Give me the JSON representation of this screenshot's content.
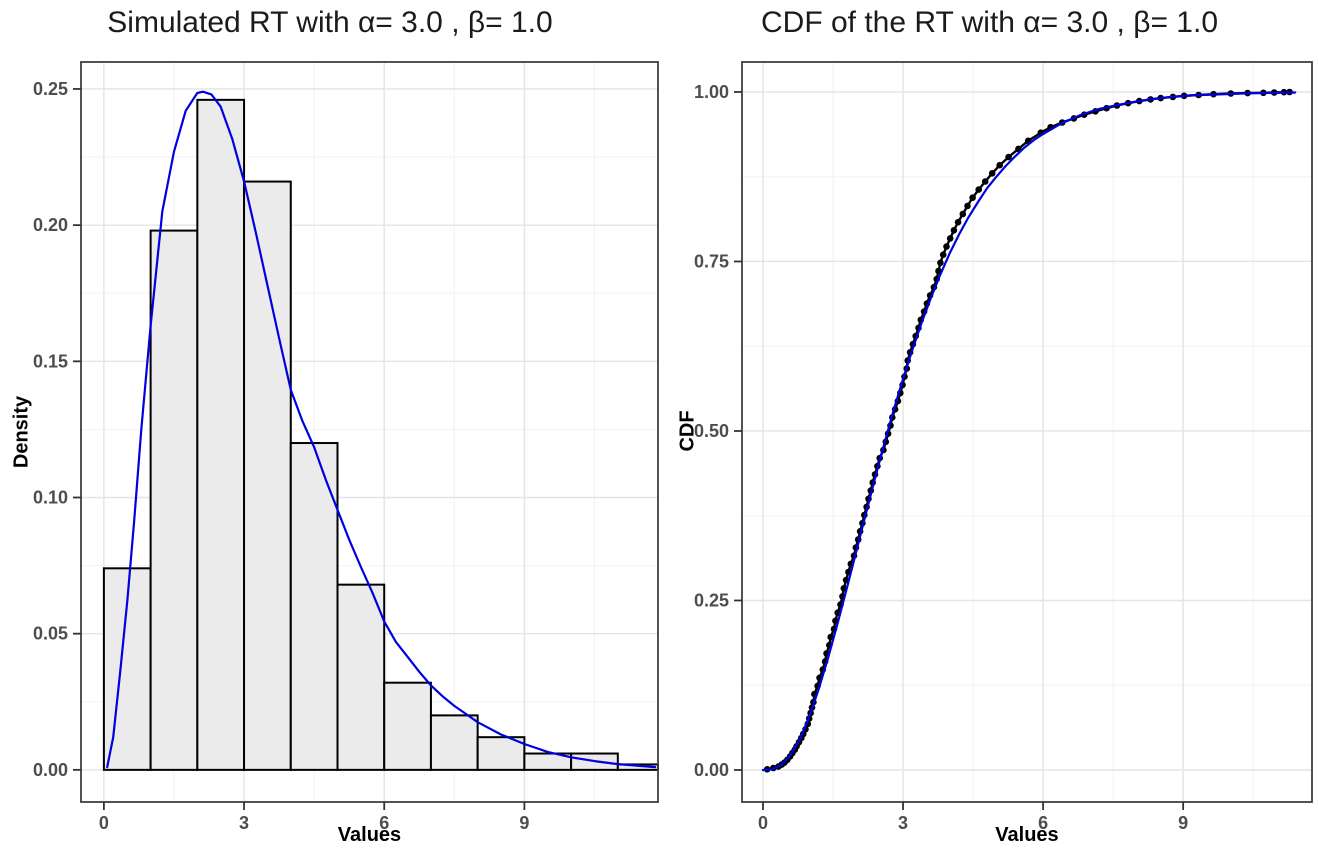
{
  "figure": {
    "background": "#ffffff",
    "panel_border_color": "#404040",
    "grid_major_color": "#e4e4e4",
    "grid_minor_color": "#f2f2f2",
    "tick_color": "#333333",
    "tick_label_color": "#4d4d4d"
  },
  "chart_data": [
    {
      "type": "bar",
      "subtype": "histogram-with-density-curve",
      "title": "Simulated RT with α= 3.0 , β= 1.0",
      "xlabel": "Values",
      "ylabel": "Density",
      "xlim": [
        -0.49,
        11.86
      ],
      "ylim": [
        -0.0118,
        0.2599
      ],
      "x_ticks": {
        "values": [
          0,
          3,
          6,
          9
        ],
        "labels": [
          "0",
          "3",
          "6",
          "9"
        ],
        "minor": [
          1.5,
          4.5,
          7.5,
          10.5
        ]
      },
      "y_ticks": {
        "values": [
          0,
          0.05,
          0.1,
          0.15,
          0.2,
          0.25
        ],
        "labels": [
          "0.00",
          "0.05",
          "0.10",
          "0.15",
          "0.20",
          "0.25"
        ],
        "minor": [
          0.025,
          0.075,
          0.125,
          0.175,
          0.225
        ]
      },
      "bins": {
        "start": 0,
        "width": 1,
        "categories": [
          "0-1",
          "1-2",
          "2-3",
          "3-4",
          "4-5",
          "5-6",
          "6-7",
          "7-8",
          "8-9",
          "9-10",
          "10-11",
          "11-12"
        ],
        "densities": [
          0.074,
          0.198,
          0.246,
          0.216,
          0.12,
          0.068,
          0.032,
          0.02,
          0.012,
          0.006,
          0.006,
          0.002
        ]
      },
      "density_curve": [
        [
          0.07,
          0.001
        ],
        [
          0.2,
          0.012
        ],
        [
          0.35,
          0.036
        ],
        [
          0.5,
          0.062
        ],
        [
          0.65,
          0.092
        ],
        [
          0.8,
          0.125
        ],
        [
          1.0,
          0.163
        ],
        [
          1.25,
          0.205
        ],
        [
          1.5,
          0.227
        ],
        [
          1.75,
          0.242
        ],
        [
          2.0,
          0.2485
        ],
        [
          2.12,
          0.249
        ],
        [
          2.3,
          0.248
        ],
        [
          2.5,
          0.2435
        ],
        [
          2.75,
          0.2315
        ],
        [
          3.0,
          0.216
        ],
        [
          3.25,
          0.1975
        ],
        [
          3.5,
          0.178
        ],
        [
          3.75,
          0.1585
        ],
        [
          4.0,
          0.1395
        ],
        [
          4.25,
          0.128
        ],
        [
          4.5,
          0.1185
        ],
        [
          4.75,
          0.1065
        ],
        [
          5.0,
          0.0955
        ],
        [
          5.25,
          0.0845
        ],
        [
          5.5,
          0.0745
        ],
        [
          5.75,
          0.065
        ],
        [
          6.0,
          0.0545
        ],
        [
          6.25,
          0.047
        ],
        [
          6.5,
          0.0415
        ],
        [
          6.75,
          0.036
        ],
        [
          7.0,
          0.031
        ],
        [
          7.25,
          0.027
        ],
        [
          7.5,
          0.0235
        ],
        [
          7.75,
          0.0205
        ],
        [
          8.0,
          0.0175
        ],
        [
          8.5,
          0.013
        ],
        [
          9.0,
          0.0095
        ],
        [
          9.5,
          0.0066
        ],
        [
          10.0,
          0.0046
        ],
        [
          10.5,
          0.0032
        ],
        [
          11.0,
          0.0021
        ],
        [
          11.5,
          0.0014
        ],
        [
          11.8,
          0.001
        ]
      ],
      "style": {
        "bar_fill": "#ebebeb",
        "bar_stroke": "#000000",
        "curve_color": "#0000e0"
      }
    },
    {
      "type": "scatter",
      "subtype": "ecdf-with-theoretical-cdf",
      "title": "CDF of the RT with α= 3.0 , β= 1.0",
      "xlabel": "Values",
      "ylabel": "CDF",
      "xlim": [
        -0.45,
        11.76
      ],
      "ylim": [
        -0.0472,
        1.0442
      ],
      "x_ticks": {
        "values": [
          0,
          3,
          6,
          9
        ],
        "labels": [
          "0",
          "3",
          "6",
          "9"
        ],
        "minor": [
          1.5,
          4.5,
          7.5,
          10.5
        ]
      },
      "y_ticks": {
        "values": [
          0,
          0.25,
          0.5,
          0.75,
          1.0
        ],
        "labels": [
          "0.00",
          "0.25",
          "0.50",
          "0.75",
          "1.00"
        ],
        "minor": [
          0.125,
          0.375,
          0.625,
          0.875
        ]
      },
      "theory_cdf": [
        [
          0,
          0
        ],
        [
          0.2,
          0.001
        ],
        [
          0.4,
          0.008
        ],
        [
          0.6,
          0.023
        ],
        [
          0.8,
          0.047
        ],
        [
          1.0,
          0.08
        ],
        [
          1.2,
          0.121
        ],
        [
          1.4,
          0.167
        ],
        [
          1.6,
          0.217
        ],
        [
          1.8,
          0.269
        ],
        [
          2.0,
          0.323
        ],
        [
          2.2,
          0.377
        ],
        [
          2.4,
          0.43
        ],
        [
          2.6,
          0.482
        ],
        [
          2.8,
          0.531
        ],
        [
          3.0,
          0.577
        ],
        [
          3.2,
          0.62
        ],
        [
          3.4,
          0.66
        ],
        [
          3.6,
          0.697
        ],
        [
          3.8,
          0.731
        ],
        [
          4.0,
          0.762
        ],
        [
          4.2,
          0.79
        ],
        [
          4.4,
          0.815
        ],
        [
          4.6,
          0.837
        ],
        [
          4.8,
          0.858
        ],
        [
          5.0,
          0.875
        ],
        [
          5.2,
          0.891
        ],
        [
          5.4,
          0.905
        ],
        [
          5.6,
          0.918
        ],
        [
          5.8,
          0.929
        ],
        [
          6.0,
          0.938
        ],
        [
          6.4,
          0.954
        ],
        [
          6.8,
          0.966
        ],
        [
          7.2,
          0.975
        ],
        [
          7.6,
          0.981
        ],
        [
          8.0,
          0.986
        ],
        [
          8.4,
          0.99
        ],
        [
          8.8,
          0.993
        ],
        [
          9.2,
          0.995
        ],
        [
          9.6,
          0.996
        ],
        [
          10.0,
          0.997
        ],
        [
          10.4,
          0.998
        ],
        [
          10.8,
          0.9986
        ],
        [
          11.2,
          0.999
        ],
        [
          11.4,
          0.9992
        ]
      ],
      "ecdf_points": [
        [
          0.09,
          0.001
        ],
        [
          0.22,
          0.003
        ],
        [
          0.33,
          0.005
        ],
        [
          0.4,
          0.008
        ],
        [
          0.46,
          0.011
        ],
        [
          0.52,
          0.015
        ],
        [
          0.58,
          0.02
        ],
        [
          0.63,
          0.025
        ],
        [
          0.68,
          0.03
        ],
        [
          0.72,
          0.035
        ],
        [
          0.77,
          0.041
        ],
        [
          0.82,
          0.047
        ],
        [
          0.86,
          0.053
        ],
        [
          0.91,
          0.06
        ],
        [
          0.96,
          0.068
        ],
        [
          0.99,
          0.076
        ],
        [
          1.02,
          0.084
        ],
        [
          1.05,
          0.092
        ],
        [
          1.08,
          0.1
        ],
        [
          1.1,
          0.112
        ],
        [
          1.17,
          0.124
        ],
        [
          1.21,
          0.136
        ],
        [
          1.28,
          0.148
        ],
        [
          1.33,
          0.16
        ],
        [
          1.36,
          0.172
        ],
        [
          1.42,
          0.184
        ],
        [
          1.45,
          0.196
        ],
        [
          1.52,
          0.208
        ],
        [
          1.55,
          0.22
        ],
        [
          1.6,
          0.232
        ],
        [
          1.66,
          0.244
        ],
        [
          1.7,
          0.256
        ],
        [
          1.73,
          0.268
        ],
        [
          1.78,
          0.28
        ],
        [
          1.83,
          0.292
        ],
        [
          1.88,
          0.304
        ],
        [
          1.95,
          0.316
        ],
        [
          1.99,
          0.328
        ],
        [
          2.04,
          0.34
        ],
        [
          2.08,
          0.352
        ],
        [
          2.13,
          0.364
        ],
        [
          2.17,
          0.376
        ],
        [
          2.22,
          0.388
        ],
        [
          2.26,
          0.4
        ],
        [
          2.31,
          0.412
        ],
        [
          2.35,
          0.424
        ],
        [
          2.4,
          0.436
        ],
        [
          2.45,
          0.448
        ],
        [
          2.5,
          0.46
        ],
        [
          2.58,
          0.472
        ],
        [
          2.63,
          0.484
        ],
        [
          2.68,
          0.496
        ],
        [
          2.73,
          0.508
        ],
        [
          2.77,
          0.52
        ],
        [
          2.83,
          0.532
        ],
        [
          2.89,
          0.544
        ],
        [
          2.94,
          0.556
        ],
        [
          2.99,
          0.568
        ],
        [
          3.03,
          0.58
        ],
        [
          3.08,
          0.592
        ],
        [
          3.1,
          0.604
        ],
        [
          3.15,
          0.616
        ],
        [
          3.21,
          0.628
        ],
        [
          3.27,
          0.64
        ],
        [
          3.33,
          0.652
        ],
        [
          3.38,
          0.664
        ],
        [
          3.45,
          0.676
        ],
        [
          3.51,
          0.688
        ],
        [
          3.58,
          0.7
        ],
        [
          3.66,
          0.712
        ],
        [
          3.72,
          0.724
        ],
        [
          3.76,
          0.736
        ],
        [
          3.8,
          0.748
        ],
        [
          3.86,
          0.76
        ],
        [
          3.93,
          0.772
        ],
        [
          4.01,
          0.784
        ],
        [
          4.09,
          0.796
        ],
        [
          4.18,
          0.808
        ],
        [
          4.28,
          0.82
        ],
        [
          4.38,
          0.832
        ],
        [
          4.49,
          0.844
        ],
        [
          4.62,
          0.856
        ],
        [
          4.76,
          0.868
        ],
        [
          4.91,
          0.88
        ],
        [
          5.07,
          0.892
        ],
        [
          5.26,
          0.904
        ],
        [
          5.47,
          0.916
        ],
        [
          5.68,
          0.928
        ],
        [
          5.95,
          0.94
        ],
        [
          6.16,
          0.948
        ],
        [
          6.41,
          0.955
        ],
        [
          6.66,
          0.961
        ],
        [
          6.88,
          0.9665
        ],
        [
          7.12,
          0.9715
        ],
        [
          7.36,
          0.976
        ],
        [
          7.58,
          0.98
        ],
        [
          7.82,
          0.9835
        ],
        [
          8.06,
          0.9865
        ],
        [
          8.3,
          0.989
        ],
        [
          8.52,
          0.991
        ],
        [
          8.78,
          0.9928
        ],
        [
          9.02,
          0.9943
        ],
        [
          9.33,
          0.9956
        ],
        [
          9.65,
          0.9967
        ],
        [
          10.02,
          0.9977
        ],
        [
          10.38,
          0.9983
        ],
        [
          10.72,
          0.9988
        ],
        [
          10.95,
          0.9992
        ],
        [
          11.16,
          0.9996
        ],
        [
          11.28,
          1.0
        ]
      ],
      "style": {
        "point_color": "#000000",
        "ecdf_line_color": "#000000",
        "line_color": "#0000e0"
      }
    }
  ]
}
